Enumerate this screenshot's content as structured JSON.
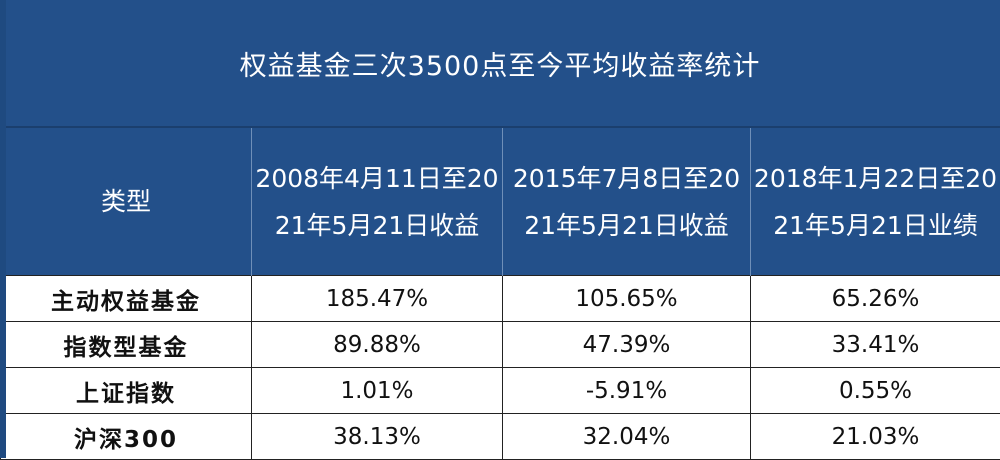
{
  "title": "权益基金三次3500点至今平均收益率统计",
  "table": {
    "headers": [
      "类型",
      "2008年4月11日至2021年5月21日收益",
      "2015年7月8日至2021年5月21日收益",
      "2018年1月22日至2021年5月21日业绩"
    ],
    "rows": [
      {
        "name": "主动权益基金",
        "values": [
          "185.47%",
          "105.65%",
          "65.26%"
        ]
      },
      {
        "name": "指数型基金",
        "values": [
          "89.88%",
          "47.39%",
          "33.41%"
        ]
      },
      {
        "name": "上证指数",
        "values": [
          "1.01%",
          "-5.91%",
          "0.55%"
        ]
      },
      {
        "name": "沪深300",
        "values": [
          "38.13%",
          "32.04%",
          "21.03%"
        ]
      }
    ]
  },
  "colors": {
    "header_bg": "#23508a",
    "header_text": "#ffffff",
    "cell_bg": "#ffffff",
    "border": "#222222"
  }
}
